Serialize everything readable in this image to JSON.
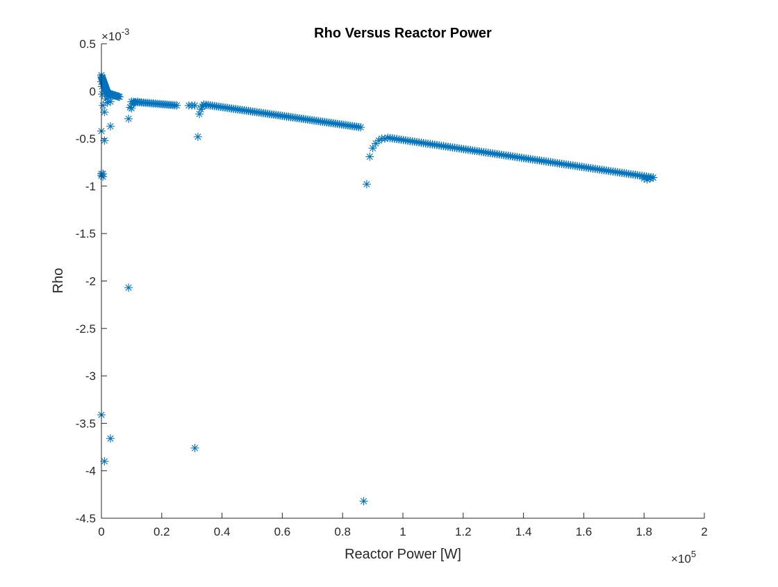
{
  "chart_data": {
    "type": "scatter",
    "title": "Rho Versus Reactor Power",
    "xlabel": "Reactor Power [W]",
    "ylabel": "Rho",
    "xlim": [
      0,
      2
    ],
    "ylim": [
      -4.5,
      0.5
    ],
    "x_scale_note": "×10",
    "x_exponent": "5",
    "y_scale_note": "×10",
    "y_exponent": "-3",
    "x_ticks": [
      "0",
      "0.2",
      "0.4",
      "0.6",
      "0.8",
      "1",
      "1.2",
      "1.4",
      "1.6",
      "1.8",
      "2"
    ],
    "y_ticks": [
      "0.5",
      "0",
      "-0.5",
      "-1",
      "-1.5",
      "-2",
      "-2.5",
      "-3",
      "-3.5",
      "-4",
      "-4.5"
    ],
    "marker": "asterisk",
    "color": "#0072BD",
    "grid": false,
    "series": [
      {
        "segments": [
          {
            "x_from": 0.001,
            "x_to": 0.02,
            "y_from": 0.15,
            "y_to": -0.02,
            "n": 25
          },
          {
            "x_from": 0.02,
            "x_to": 0.06,
            "y_from": -0.02,
            "y_to": -0.06,
            "n": 14
          },
          {
            "x_from": 0.1,
            "x_to": 0.25,
            "y_from": -0.11,
            "y_to": -0.15,
            "n": 24
          },
          {
            "x_from": 0.34,
            "x_to": 0.86,
            "y_from": -0.14,
            "y_to": -0.38,
            "n": 75
          },
          {
            "x_from": 0.95,
            "x_to": 1.83,
            "y_from": -0.49,
            "y_to": -0.91,
            "n": 120
          }
        ],
        "points": [
          [
            0.0,
            0.17
          ],
          [
            0.0,
            0.1
          ],
          [
            0.002,
            0.05
          ],
          [
            0.003,
            -0.03
          ],
          [
            0.0,
            -0.87
          ],
          [
            0.0,
            -0.89
          ],
          [
            0.005,
            -0.87
          ],
          [
            0.005,
            -0.9
          ],
          [
            0.0,
            -0.42
          ],
          [
            0.005,
            -0.15
          ],
          [
            0.01,
            -0.22
          ],
          [
            0.01,
            -0.52
          ],
          [
            0.0,
            -3.41
          ],
          [
            0.01,
            -3.9
          ],
          [
            0.03,
            -3.66
          ],
          [
            0.03,
            -0.37
          ],
          [
            0.015,
            -0.08
          ],
          [
            0.02,
            -0.12
          ],
          [
            0.025,
            -0.06
          ],
          [
            0.03,
            -0.11
          ],
          [
            0.09,
            -0.29
          ],
          [
            0.09,
            -2.07
          ],
          [
            0.095,
            -0.17
          ],
          [
            0.1,
            -0.18
          ],
          [
            0.105,
            -0.13
          ],
          [
            0.11,
            -0.12
          ],
          [
            0.12,
            -0.11
          ],
          [
            0.29,
            -0.15
          ],
          [
            0.3,
            -0.15
          ],
          [
            0.31,
            -0.15
          ],
          [
            0.31,
            -3.76
          ],
          [
            0.32,
            -0.48
          ],
          [
            0.325,
            -0.24
          ],
          [
            0.33,
            -0.19
          ],
          [
            0.335,
            -0.16
          ],
          [
            0.34,
            -0.15
          ],
          [
            0.87,
            -4.32
          ],
          [
            0.88,
            -0.98
          ],
          [
            0.89,
            -0.69
          ],
          [
            0.9,
            -0.6
          ],
          [
            0.91,
            -0.55
          ],
          [
            0.92,
            -0.52
          ],
          [
            0.93,
            -0.5
          ],
          [
            0.94,
            -0.5
          ],
          [
            1.8,
            -0.92
          ],
          [
            1.81,
            -0.93
          ],
          [
            1.82,
            -0.92
          ],
          [
            1.83,
            -0.91
          ]
        ]
      }
    ]
  }
}
